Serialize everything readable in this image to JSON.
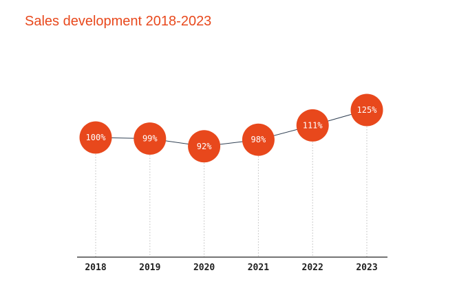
{
  "title": "Sales development 2018-2023",
  "colors": {
    "accent": "#e8481c",
    "line": "#2f3f52",
    "axis": "#222222",
    "guide": "#bbbbbb"
  },
  "chart_data": {
    "type": "line",
    "title": "Sales development 2018-2023",
    "xlabel": "",
    "ylabel": "",
    "categories": [
      "2018",
      "2019",
      "2020",
      "2021",
      "2022",
      "2023"
    ],
    "values": [
      100,
      99,
      92,
      98,
      111,
      125
    ],
    "data_labels": [
      "100%",
      "99%",
      "92%",
      "98%",
      "111%",
      "125%"
    ],
    "grid": false,
    "legend": "none"
  }
}
